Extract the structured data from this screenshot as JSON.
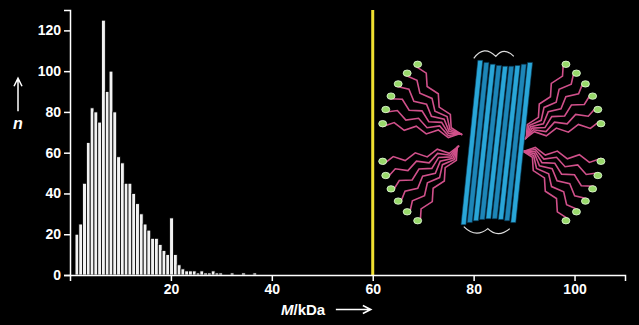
{
  "chart_data": {
    "type": "histogram",
    "x_label": "M/kDa",
    "y_label": "n",
    "bins": [
      1,
      1.75,
      2.5,
      3.25,
      4,
      4.75,
      5.5,
      6.25,
      7,
      7.75,
      8.5,
      9.25,
      10,
      10.75,
      11.5,
      12.25,
      13,
      13.75,
      14.5,
      15.25,
      16,
      16.75,
      17.5,
      18.25,
      19,
      19.75,
      20.5,
      21.25,
      22,
      22.75,
      23.5,
      24.25,
      25,
      25.75,
      26.5,
      27.25,
      28,
      28.75,
      29.5,
      30.25,
      31,
      31.75,
      32.5,
      33.25,
      34,
      34.75,
      35.5,
      36.25,
      37
    ],
    "values": [
      20,
      25,
      45,
      65,
      82,
      80,
      75,
      125,
      90,
      100,
      80,
      58,
      55,
      45,
      45,
      40,
      35,
      30,
      25,
      22,
      18,
      18,
      15,
      12,
      10,
      28,
      10,
      5,
      3,
      2,
      2,
      2,
      1,
      2,
      1,
      1,
      2,
      1,
      1,
      0,
      0,
      1,
      0,
      0,
      1,
      0,
      0,
      1
    ],
    "color": "#f2f2f2",
    "xlim": [
      0,
      110
    ],
    "xticks": [
      20,
      40,
      60,
      80,
      100
    ],
    "ylim": [
      0,
      130
    ],
    "yticks": [
      0,
      20,
      40,
      60,
      80,
      100,
      120
    ],
    "vline": {
      "x": 60,
      "color": "#f0e030"
    }
  }
}
